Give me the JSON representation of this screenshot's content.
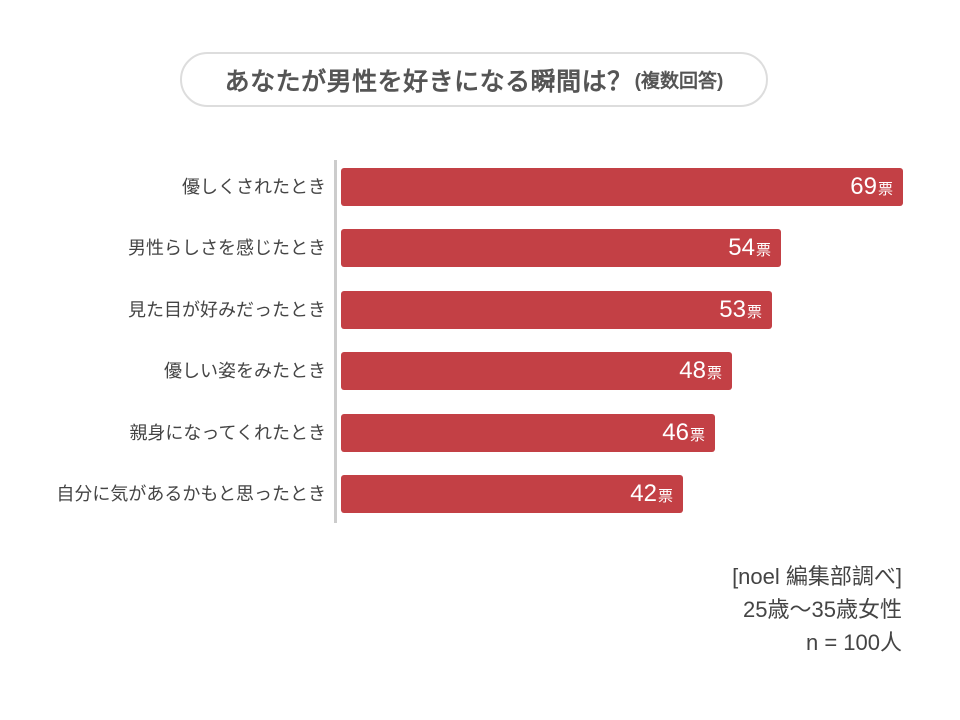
{
  "title": {
    "main": "あなたが男性を好きになる瞬間は？",
    "suffix": "(複数回答)"
  },
  "chart_data": {
    "type": "bar",
    "orientation": "horizontal",
    "title": "あなたが男性を好きになる瞬間は？(複数回答)",
    "categories": [
      "優しくされたとき",
      "男性らしさを感じたとき",
      "見た目が好みだったとき",
      "優しい姿をみたとき",
      "親身になってくれたとき",
      "自分に気があるかもと思ったとき"
    ],
    "values": [
      69,
      54,
      53,
      48,
      46,
      42
    ],
    "unit": "票",
    "value_labels": [
      "69票",
      "54票",
      "53票",
      "48票",
      "46票",
      "42票"
    ],
    "bar_color": "#c34045",
    "axis_color": "#cccccc",
    "xlim": [
      0,
      70
    ],
    "grid": false,
    "legend": false
  },
  "footer": {
    "lines": [
      "[noel 編集部調べ]",
      "25歳〜35歳女性",
      "n = 100人"
    ]
  }
}
